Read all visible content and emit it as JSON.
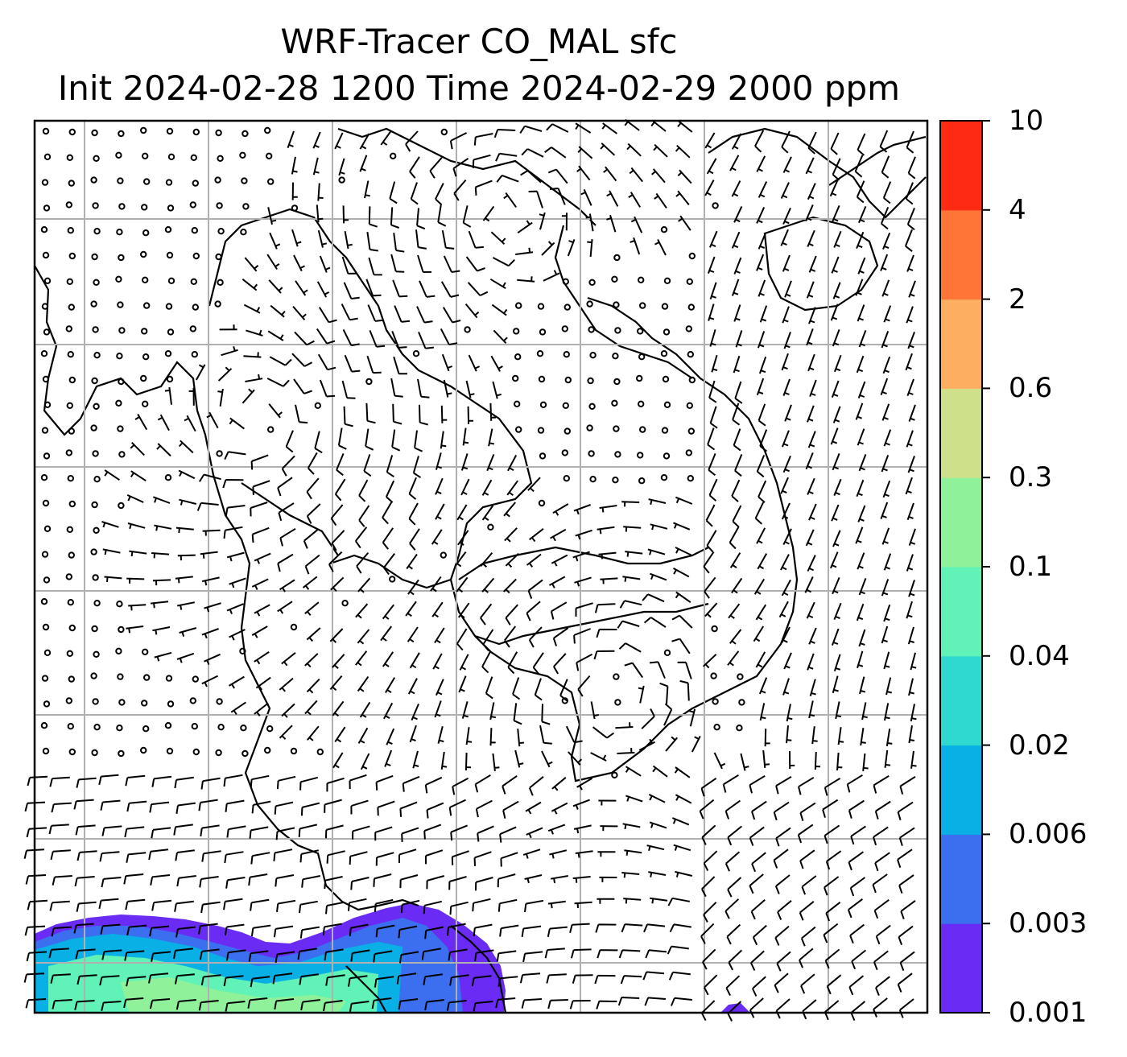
{
  "title": {
    "line1": "WRF-Tracer CO_MAL sfc",
    "line2": "Init 2024-02-28 1200 Time 2024-02-29 2000 ppm"
  },
  "colorbar": {
    "levels": [
      "0.001",
      "0.003",
      "0.006",
      "0.02",
      "0.04",
      "0.1",
      "0.3",
      "0.6",
      "2",
      "4",
      "10"
    ],
    "colors": [
      "#6a2bf5",
      "#3b6ff0",
      "#08b0e6",
      "#2fd9cf",
      "#60f2b6",
      "#8ff29a",
      "#cfe08a",
      "#fdae61",
      "#ff7538",
      "#ff2a13"
    ]
  },
  "map": {
    "background": "#ffffff",
    "grid_color": "#b0b0b0",
    "coastline_color": "#000000",
    "barb_color": "#000000"
  }
}
